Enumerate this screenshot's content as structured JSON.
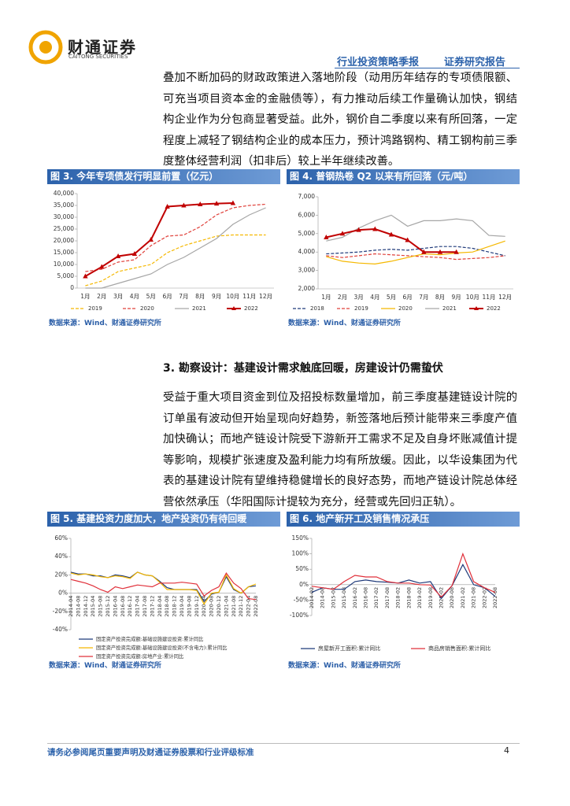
{
  "header": {
    "brand": "财通证券",
    "brand_en": "CAITONG SECURITIES",
    "report_type": "行业投资策略季报",
    "report_kind": "证券研究报告"
  },
  "paragraphs": [
    "叠加不断加码的财政政策进入落地阶段（动用历年结存的专项债限额、可充当项目资本金的金融债等），有力推动后续工作量确认加快，钢结构企业作为分包商显著受益。此外，钢价自二季度以来有所回落，一定程度上减轻了钢结构企业的成本压力，预计鸿路钢构、精工钢构前三季度整体经营利润（扣非后）较上半年继续改善。",
    "受益于重大项目资金到位及招投标数量增加，前三季度基建链设计院的订单虽有波动但开始呈现向好趋势，新签落地后预计能带来三季度产值加快确认；而地产链设计院受下游新开工需求不足及自身坏账减值计提等影响，规模扩张速度及盈利能力均有所放缓。因此，以华设集团为代表的基建设计院有望维持稳健增长的良好态势，而地产链设计院总体经营依然承压（华阳国际计提较为充分，经营或先回归正轨）。"
  ],
  "section_heading": "3. 勘察设计：基建设计需求触底回暖，房建设计仍需蛰伏",
  "footer": {
    "disclaimer": "请务必参阅尾页重要声明及财通证券股票和行业评级标准",
    "page": "4"
  },
  "chart_data": [
    {
      "type": "line",
      "title": "图 3. 今年专项债发行明显前置（亿元）",
      "source": "数据来源：Wind、财通证券研究所",
      "categories": [
        "1月",
        "2月",
        "3月",
        "4月",
        "5月",
        "6月",
        "7月",
        "8月",
        "9月",
        "10月",
        "11月",
        "12月"
      ],
      "ylim": [
        0,
        40000
      ],
      "yticks": [
        0,
        {
          "value": 5000,
          "label": "5,000"
        },
        {
          "value": 10000,
          "label": "10,000"
        },
        {
          "value": 15000,
          "label": "15,000"
        },
        {
          "value": 20000,
          "label": "20,000"
        },
        {
          "value": 25000,
          "label": "25,000"
        },
        {
          "value": 30000,
          "label": "30,000"
        },
        {
          "value": 35000,
          "label": "35,000"
        },
        {
          "value": 40000,
          "label": "40,000"
        }
      ],
      "series": [
        {
          "name": "2019",
          "color": "#f5b800",
          "dash": true,
          "values": [
            1000,
            3000,
            7000,
            8500,
            10000,
            15000,
            18000,
            20000,
            22000,
            22500,
            22500,
            22500
          ]
        },
        {
          "name": "2020",
          "color": "#e0403a",
          "dash": true,
          "values": [
            7000,
            8000,
            11000,
            12000,
            18000,
            22000,
            22500,
            26000,
            31000,
            34000,
            35000,
            35500
          ]
        },
        {
          "name": "2021",
          "color": "#a6a6a6",
          "values": [
            0,
            0,
            2000,
            4000,
            6000,
            10000,
            13000,
            17000,
            21000,
            27000,
            31000,
            34000
          ]
        },
        {
          "name": "2022",
          "color": "#c00000",
          "marker": "triangle",
          "values": [
            5000,
            9000,
            13500,
            14500,
            20500,
            34500,
            35000,
            35500,
            35800,
            36000,
            null,
            null
          ]
        }
      ]
    },
    {
      "type": "line",
      "title": "图 4. 普钢热卷 Q2 以来有所回落（元/吨）",
      "source": "数据来源：Wind、财通证券研究所",
      "categories": [
        "1月",
        "2月",
        "3月",
        "4月",
        "5月",
        "6月",
        "7月",
        "8月",
        "9月",
        "10月",
        "11月",
        "12月"
      ],
      "ylim": [
        2000,
        7000
      ],
      "yticks": [
        {
          "value": 2000,
          "label": "2,000"
        },
        {
          "value": 3000,
          "label": "3,000"
        },
        {
          "value": 4000,
          "label": "4,000"
        },
        {
          "value": 5000,
          "label": "5,000"
        },
        {
          "value": 6000,
          "label": "6,000"
        },
        {
          "value": 7000,
          "label": "7,000"
        }
      ],
      "series": [
        {
          "name": "2018",
          "color": "#1f3a7a",
          "dash": true,
          "values": [
            3900,
            3950,
            4000,
            4100,
            4150,
            4100,
            4200,
            4300,
            4300,
            4200,
            4000,
            3800
          ]
        },
        {
          "name": "2019",
          "color": "#e0403a",
          "dash": true,
          "values": [
            3800,
            3700,
            3800,
            3900,
            3850,
            3800,
            3750,
            3700,
            3600,
            3650,
            3700,
            3800
          ]
        },
        {
          "name": "2020",
          "color": "#f5b800",
          "values": [
            3750,
            3500,
            3400,
            3350,
            3500,
            3700,
            3900,
            3850,
            3950,
            4000,
            4300,
            4600
          ]
        },
        {
          "name": "2021",
          "color": "#a6a6a6",
          "values": [
            4600,
            4800,
            5300,
            5700,
            6000,
            5400,
            5700,
            5700,
            5800,
            5700,
            4900,
            4850
          ]
        },
        {
          "name": "2022",
          "color": "#c00000",
          "marker": "triangle",
          "values": [
            4800,
            5000,
            5200,
            5250,
            4950,
            4650,
            4000,
            4000,
            4000,
            null,
            null,
            null
          ]
        }
      ]
    },
    {
      "type": "line",
      "title": "图 5. 基建投资力度加大，地产投资仍有待回暖",
      "source": "数据来源：Wind、财通证券研究所",
      "categories": [
        "2014-04",
        "2014-08",
        "2014-12",
        "2015-04",
        "2015-08",
        "2015-12",
        "2016-04",
        "2016-08",
        "2016-12",
        "2017-04",
        "2017-08",
        "2017-12",
        "2018-04",
        "2018-08",
        "2018-12",
        "2019-04",
        "2019-08",
        "2019-12",
        "2020-04",
        "2020-08",
        "2020-12",
        "2021-04",
        "2021-08",
        "2021-12",
        "2022-04",
        "2022-08"
      ],
      "ylim": [
        -40,
        60
      ],
      "yticks": [
        {
          "value": -40,
          "label": "-40%"
        },
        {
          "value": -20,
          "label": "-20%"
        },
        {
          "value": 0,
          "label": "0%"
        },
        {
          "value": 20,
          "label": "20%"
        },
        {
          "value": 40,
          "label": "40%"
        },
        {
          "value": 60,
          "label": "60%"
        }
      ],
      "series": [
        {
          "name": "固定资产投资完成额:基础设施建设投资:累计同比",
          "color": "#1f3a7a",
          "values": [
            23,
            21,
            21,
            19,
            19,
            17,
            20,
            19,
            17,
            23,
            20,
            19,
            13,
            6,
            4,
            4,
            4,
            4,
            -9,
            -1,
            1,
            18,
            4,
            0,
            7,
            8
          ]
        },
        {
          "name": "固定资产投资完成额:基础设施建设投资(不含电力):累计同比",
          "color": "#f5b800",
          "values": [
            22,
            20,
            21,
            20,
            18,
            17,
            19,
            18,
            16,
            23,
            20,
            19,
            12,
            4,
            4,
            4,
            4,
            3,
            -12,
            0,
            1,
            20,
            5,
            0,
            7,
            10
          ]
        },
        {
          "name": "固定资产投资完成额:房地产业:累计同比",
          "color": "#e0303a",
          "values": [
            15,
            13,
            11,
            8,
            4,
            1,
            7,
            5,
            7,
            9,
            8,
            7,
            11,
            11,
            11,
            12,
            11,
            10,
            -3,
            3,
            7,
            22,
            11,
            5,
            -6,
            -7
          ]
        }
      ]
    },
    {
      "type": "line",
      "title": "图 6. 地产新开工及销售情况承压",
      "source": "数据来源：Wind、财通证券研究所",
      "categories": [
        "2014-02",
        "2014-08",
        "2015-02",
        "2015-08",
        "2016-02",
        "2016-08",
        "2017-02",
        "2017-08",
        "2018-02",
        "2018-08",
        "2019-02",
        "2019-08",
        "2020-02",
        "2020-08",
        "2021-02",
        "2021-08",
        "2022-02",
        "2022-08"
      ],
      "ylim": [
        -100,
        150
      ],
      "yticks": [
        {
          "value": -100,
          "label": "-100%"
        },
        {
          "value": -50,
          "label": "-50%"
        },
        {
          "value": 0,
          "label": "0%"
        },
        {
          "value": 50,
          "label": "50%"
        },
        {
          "value": 100,
          "label": "100%"
        },
        {
          "value": 150,
          "label": "150%"
        }
      ],
      "series": [
        {
          "name": "房屋新开工面积:累计同比",
          "color": "#1f3a7a",
          "values": [
            -25,
            -10,
            -15,
            -15,
            10,
            15,
            10,
            8,
            5,
            15,
            5,
            10,
            -45,
            -3,
            65,
            0,
            -10,
            -38
          ]
        },
        {
          "name": "商品房销售面积:累计同比",
          "color": "#e0303a",
          "values": [
            -5,
            -10,
            -15,
            10,
            30,
            25,
            25,
            10,
            5,
            5,
            0,
            -1,
            -40,
            -3,
            100,
            10,
            -10,
            -25
          ]
        }
      ]
    }
  ]
}
